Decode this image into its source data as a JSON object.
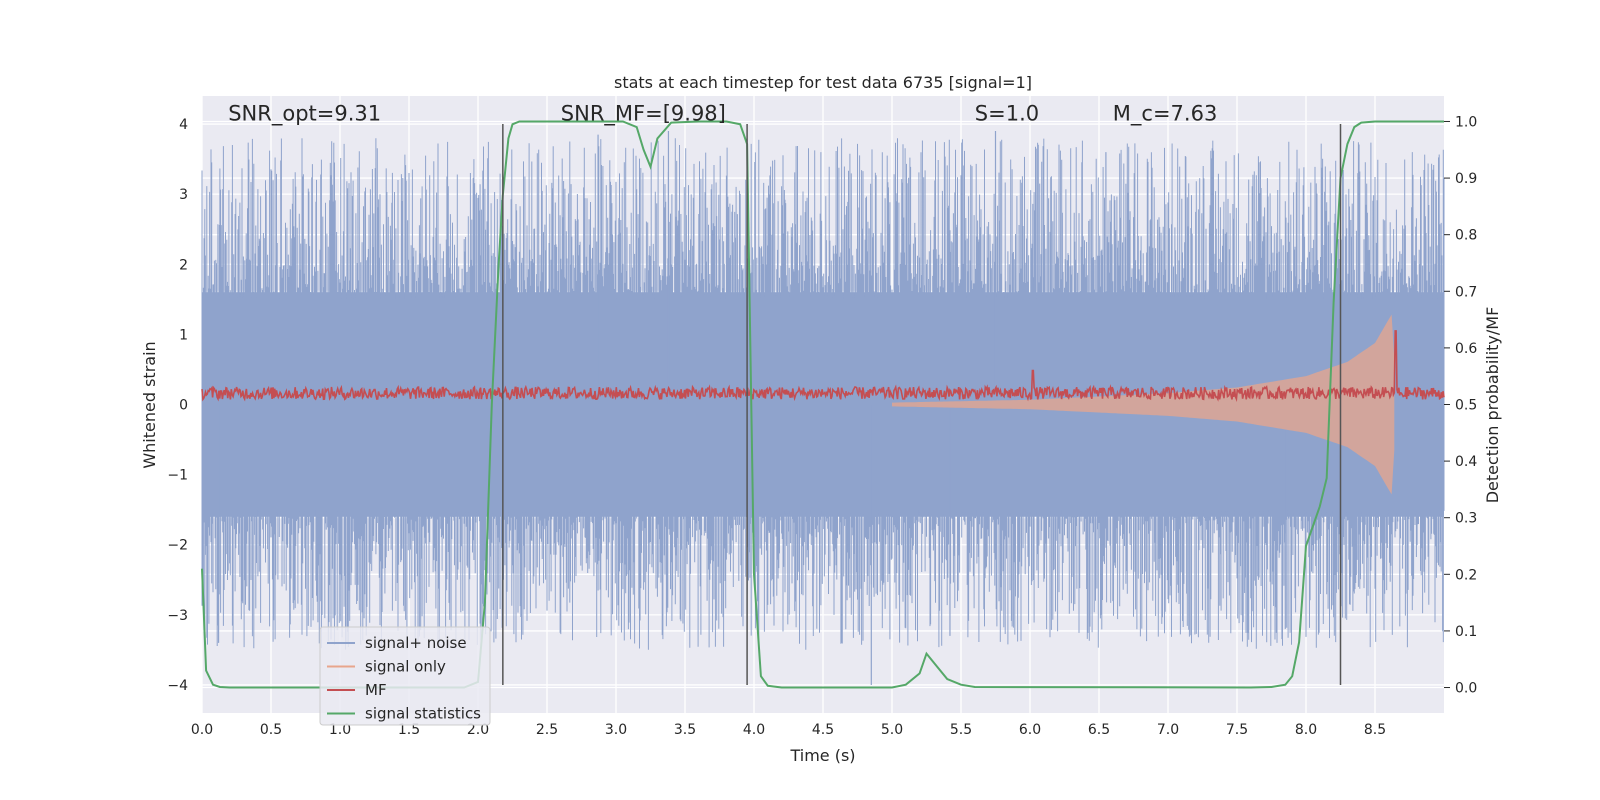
{
  "chart_data": {
    "type": "line",
    "title": "stats at each timestep for test data 6735 [signal=1]",
    "xlabel": "Time (s)",
    "ylabel": "Whitened strain",
    "y2label": "Detection probability/MF",
    "xlim": [
      0.0,
      9.0
    ],
    "ylim": [
      -4.4,
      4.4
    ],
    "y2lim": [
      -0.045,
      1.045
    ],
    "xticks": [
      "0.0",
      "0.5",
      "1.0",
      "1.5",
      "2.0",
      "2.5",
      "3.0",
      "3.5",
      "4.0",
      "4.5",
      "5.0",
      "5.5",
      "6.0",
      "6.5",
      "7.0",
      "7.5",
      "8.0",
      "8.5"
    ],
    "xtick_values": [
      0.0,
      0.5,
      1.0,
      1.5,
      2.0,
      2.5,
      3.0,
      3.5,
      4.0,
      4.5,
      5.0,
      5.5,
      6.0,
      6.5,
      7.0,
      7.5,
      8.0,
      8.5
    ],
    "yticks": [
      "4",
      "3",
      "2",
      "1",
      "0",
      "−1",
      "−2",
      "−3",
      "−4"
    ],
    "ytick_values": [
      4,
      3,
      2,
      1,
      0,
      -1,
      -2,
      -3,
      -4
    ],
    "y2ticks": [
      "1.0",
      "0.9",
      "0.8",
      "0.7",
      "0.6",
      "0.5",
      "0.4",
      "0.3",
      "0.2",
      "0.1",
      "0.0"
    ],
    "y2tick_values": [
      1.0,
      0.9,
      0.8,
      0.7,
      0.6,
      0.5,
      0.4,
      0.3,
      0.2,
      0.1,
      0.0
    ],
    "annotations": [
      {
        "text": "SNR_opt=9.31",
        "x": 0.19,
        "y": 4.05
      },
      {
        "text": "SNR_MF=[9.98]",
        "x": 2.6,
        "y": 4.05
      },
      {
        "text": "S=1.0",
        "x": 5.6,
        "y": 4.05
      },
      {
        "text": "M_c=7.63",
        "x": 6.6,
        "y": 4.05
      }
    ],
    "vertical_lines_x": [
      2.18,
      3.95,
      8.25
    ],
    "series": [
      {
        "name": "signal+ noise",
        "color": "#8fa3cc",
        "description": "whitened strain, |amplitude| mostly 1.5-3.3 with peaks to about 4"
      },
      {
        "name": "signal only",
        "color": "#e8a58c",
        "envelope": {
          "x": [
            5.0,
            6.0,
            7.0,
            7.5,
            8.0,
            8.3,
            8.5,
            8.62,
            8.65
          ],
          "amp": [
            0.02,
            0.05,
            0.12,
            0.18,
            0.3,
            0.45,
            0.65,
            0.95,
            0.25
          ]
        }
      },
      {
        "name": "MF",
        "color": "#c44e52",
        "axis": "y2",
        "baseline": 0.52,
        "spikes": [
          {
            "x": 6.02,
            "y": 0.56
          },
          {
            "x": 8.65,
            "y": 0.63
          }
        ]
      },
      {
        "name": "signal statistics",
        "color": "#55a868",
        "axis": "y2",
        "x": [
          0.0,
          0.03,
          0.08,
          0.13,
          0.2,
          0.3,
          1.9,
          2.0,
          2.05,
          2.1,
          2.15,
          2.18,
          2.22,
          2.25,
          2.3,
          2.5,
          3.05,
          3.15,
          3.2,
          3.25,
          3.3,
          3.4,
          3.6,
          3.8,
          3.9,
          3.95,
          4.0,
          4.05,
          4.1,
          4.2,
          5.0,
          5.1,
          5.2,
          5.25,
          5.3,
          5.4,
          5.5,
          5.6,
          7.6,
          7.75,
          7.85,
          7.9,
          7.95,
          8.0,
          8.1,
          8.15,
          8.2,
          8.25,
          8.3,
          8.35,
          8.4,
          8.5,
          9.0
        ],
        "y": [
          0.21,
          0.03,
          0.005,
          0.001,
          0.0,
          0.0,
          0.0,
          0.01,
          0.15,
          0.5,
          0.75,
          0.87,
          0.97,
          0.995,
          1.0,
          1.0,
          1.0,
          0.99,
          0.95,
          0.92,
          0.97,
          0.998,
          1.0,
          1.0,
          0.995,
          0.96,
          0.2,
          0.02,
          0.003,
          0.0,
          0.0,
          0.005,
          0.025,
          0.06,
          0.045,
          0.015,
          0.005,
          0.001,
          0.0,
          0.001,
          0.005,
          0.02,
          0.08,
          0.25,
          0.32,
          0.37,
          0.68,
          0.9,
          0.96,
          0.99,
          0.998,
          1.0,
          1.0
        ]
      }
    ],
    "legend": {
      "location": "lower-left",
      "entries": [
        "signal+ noise",
        "signal only",
        "MF",
        "signal statistics"
      ]
    }
  }
}
